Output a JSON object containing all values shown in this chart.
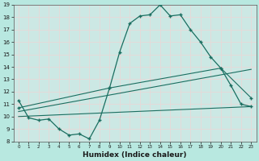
{
  "xlabel": "Humidex (Indice chaleur)",
  "xlim": [
    -0.5,
    23.5
  ],
  "ylim": [
    8,
    19
  ],
  "yticks": [
    8,
    9,
    10,
    11,
    12,
    13,
    14,
    15,
    16,
    17,
    18,
    19
  ],
  "xticks": [
    0,
    1,
    2,
    3,
    4,
    5,
    6,
    7,
    8,
    9,
    10,
    11,
    12,
    13,
    14,
    15,
    16,
    17,
    18,
    19,
    20,
    21,
    22,
    23
  ],
  "background_color": "#b8e8e0",
  "plot_bg_color": "#cce8e4",
  "grid_color": "#e8d8d8",
  "line_color": "#1a6e60",
  "line1": {
    "x": [
      0,
      1,
      2,
      3,
      4,
      5,
      6,
      7,
      8,
      9,
      10,
      11,
      12,
      13,
      14,
      15,
      16,
      17,
      18,
      19,
      20,
      21,
      22,
      23
    ],
    "y": [
      11.3,
      9.9,
      9.7,
      9.8,
      9.0,
      8.5,
      8.6,
      8.2,
      9.7,
      12.3,
      15.2,
      17.5,
      18.1,
      18.2,
      19.0,
      18.1,
      18.2,
      17.0,
      16.0,
      14.8,
      13.9,
      12.5,
      11.0,
      10.8
    ]
  },
  "line2": {
    "x": [
      0,
      23
    ],
    "y": [
      10.0,
      10.8
    ]
  },
  "line3": {
    "x": [
      0,
      23
    ],
    "y": [
      10.4,
      13.8
    ]
  },
  "line4": {
    "x": [
      0,
      9,
      20,
      23
    ],
    "y": [
      10.7,
      12.3,
      13.9,
      11.5
    ]
  }
}
